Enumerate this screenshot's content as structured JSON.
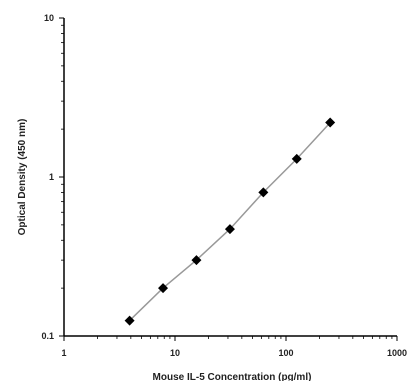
{
  "chart_data": {
    "type": "scatter",
    "title": "",
    "xlabel": "Mouse IL-5 Concentration (pg/ml)",
    "ylabel": "Optical Density (450 nm)",
    "xscale": "log",
    "yscale": "log",
    "xlim": [
      1,
      1000
    ],
    "ylim": [
      0.1,
      10
    ],
    "x_ticks": [
      "1",
      "10",
      "100",
      "1000"
    ],
    "y_ticks": [
      "0.1",
      "1",
      "10"
    ],
    "grid": false,
    "legend": "none",
    "series": [
      {
        "x": [
          3.9,
          7.8,
          15.6,
          31.25,
          62.5,
          125,
          250
        ],
        "y": [
          0.125,
          0.2,
          0.3,
          0.47,
          0.8,
          1.3,
          2.2
        ],
        "marker": "diamond",
        "connected": true,
        "color": "#000000",
        "line_color": "#999999"
      }
    ]
  }
}
